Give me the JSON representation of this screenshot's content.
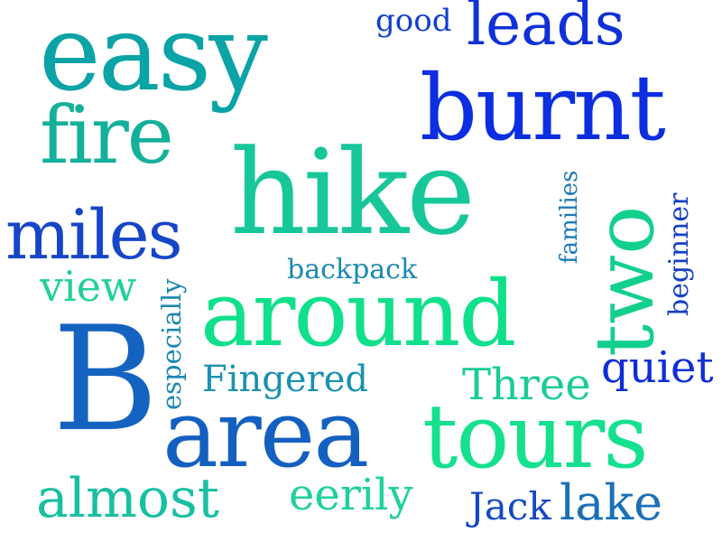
{
  "words": {
    "easy": {
      "text": "easy",
      "color": "#0aa3a6"
    },
    "good": {
      "text": "good",
      "color": "#1040d0"
    },
    "leads": {
      "text": "leads",
      "color": "#1030d8"
    },
    "burnt": {
      "text": "burnt",
      "color": "#0c2ee0"
    },
    "fire": {
      "text": "fire",
      "color": "#13b09a"
    },
    "hike": {
      "text": "hike",
      "color": "#17c79a"
    },
    "miles": {
      "text": "miles",
      "color": "#1645c8"
    },
    "families": {
      "text": "families",
      "color": "#1a7ab5"
    },
    "two": {
      "text": "two",
      "color": "#12d08c"
    },
    "beginner": {
      "text": "beginner",
      "color": "#1640c4"
    },
    "backpack": {
      "text": "backpack",
      "color": "#1a8ab0"
    },
    "view": {
      "text": "view",
      "color": "#20d09a"
    },
    "especially": {
      "text": "especially",
      "color": "#1a88b0"
    },
    "around": {
      "text": "around",
      "color": "#10e08c"
    },
    "B": {
      "text": "B",
      "color": "#1463c0"
    },
    "quiet": {
      "text": "quiet",
      "color": "#0f2ed8"
    },
    "fingered": {
      "text": "Fingered",
      "color": "#1a90b0"
    },
    "three": {
      "text": "Three",
      "color": "#19cc96"
    },
    "area": {
      "text": "area",
      "color": "#1460c0"
    },
    "tours": {
      "text": "tours",
      "color": "#14e08e"
    },
    "almost": {
      "text": "almost",
      "color": "#18c0a0"
    },
    "eerily": {
      "text": "eerily",
      "color": "#1ed09c"
    },
    "jack": {
      "text": "Jack",
      "color": "#1448c4"
    },
    "lake": {
      "text": "lake",
      "color": "#1a70b8"
    }
  }
}
